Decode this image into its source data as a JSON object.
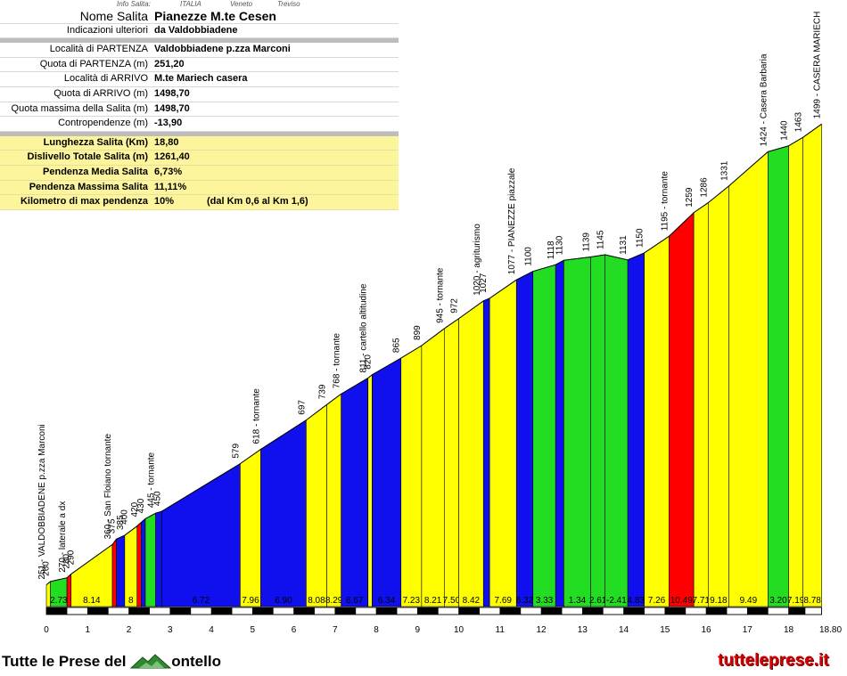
{
  "header": {
    "col1": "Info Salita:",
    "col2": "ITALIA",
    "col3": "Veneto",
    "col4": "Treviso"
  },
  "info": {
    "nome_label": "Nome Salita",
    "nome_value": "Pianezze M.te Cesen",
    "ind_label": "Indicazioni ulteriori",
    "ind_value": "da Valdobbiadene",
    "loc_p_label": "Località di PARTENZA",
    "loc_p_value": "Valdobbiadene p.zza Marconi",
    "quota_p_label": "Quota di PARTENZA (m)",
    "quota_p_value": "251,20",
    "loc_a_label": "Località di ARRIVO",
    "loc_a_value": "M.te Mariech casera",
    "quota_a_label": "Quota di ARRIVO (m)",
    "quota_a_value": "1498,70",
    "quota_max_label": "Quota massima della Salita (m)",
    "quota_max_value": "1498,70",
    "contro_label": "Contropendenze (m)",
    "contro_value": "-13,90",
    "lung_label": "Lunghezza Salita (Km)",
    "lung_value": "18,80",
    "disl_label": "Dislivello Totale Salita (m)",
    "disl_value": "1261,40",
    "pmed_label": "Pendenza Media Salita",
    "pmed_value": "6,73%",
    "pmax_label": "Pendenza Massima Salita",
    "pmax_value": "11,11%",
    "kmax_label": "Kilometro di max pendenza",
    "kmax_value": "10%",
    "kmax_extra": "(dal Km 0,6 al Km 1,6)"
  },
  "chart_data": {
    "type": "area",
    "xlabel": "",
    "ylabel": "",
    "xlim": [
      0,
      18.8
    ],
    "x_ticks": [
      "0",
      "1",
      "2",
      "3",
      "4",
      "5",
      "6",
      "7",
      "8",
      "9",
      "10",
      "11",
      "12",
      "13",
      "14",
      "15",
      "16",
      "17",
      "18",
      "18.80"
    ],
    "ylim": [
      200,
      1520
    ],
    "colors": {
      "yellow": "#ffff00",
      "green": "#22dd22",
      "blue": "#1010ee",
      "red": "#ff0000",
      "olive": "#cccc00"
    },
    "profile": [
      {
        "x": 0,
        "y": 251,
        "c": "yellow",
        "grade": ""
      },
      {
        "x": 0.1,
        "y": 260,
        "c": "green",
        "grade": "2.73"
      },
      {
        "x": 0.5,
        "y": 270,
        "c": "red",
        "grade": ""
      },
      {
        "x": 0.6,
        "y": 280,
        "c": "yellow",
        "grade": "8.14"
      },
      {
        "x": 1.6,
        "y": 360,
        "c": "red",
        "grade": ""
      },
      {
        "x": 1.7,
        "y": 375,
        "c": "blue",
        "grade": ""
      },
      {
        "x": 1.9,
        "y": 385,
        "c": "yellow",
        "grade": "8"
      },
      {
        "x": 2.2,
        "y": 410,
        "c": "red",
        "grade": ""
      },
      {
        "x": 2.3,
        "y": 420,
        "c": "blue",
        "grade": ""
      },
      {
        "x": 2.4,
        "y": 430,
        "c": "green",
        "grade": ""
      },
      {
        "x": 2.65,
        "y": 445,
        "c": "blue",
        "grade": ""
      },
      {
        "x": 2.8,
        "y": 450,
        "c": "blue",
        "grade": "6.72"
      },
      {
        "x": 4.7,
        "y": 579,
        "c": "yellow",
        "grade": "7.96"
      },
      {
        "x": 5.2,
        "y": 618,
        "c": "blue",
        "grade": "6.90"
      },
      {
        "x": 6.3,
        "y": 697,
        "c": "yellow",
        "grade": "8.08"
      },
      {
        "x": 6.8,
        "y": 739,
        "c": "yellow",
        "grade": "8.29"
      },
      {
        "x": 7.15,
        "y": 768,
        "c": "blue",
        "grade": "6.67"
      },
      {
        "x": 7.8,
        "y": 811,
        "c": "yellow",
        "grade": ""
      },
      {
        "x": 7.9,
        "y": 820,
        "c": "blue",
        "grade": "6.34"
      },
      {
        "x": 8.6,
        "y": 865,
        "c": "yellow",
        "grade": "7.23"
      },
      {
        "x": 9.1,
        "y": 899,
        "c": "yellow",
        "grade": "8.21"
      },
      {
        "x": 9.65,
        "y": 945,
        "c": "yellow",
        "grade": "7.50"
      },
      {
        "x": 10.0,
        "y": 972,
        "c": "yellow",
        "grade": "8.42"
      },
      {
        "x": 10.6,
        "y": 1020,
        "c": "blue",
        "grade": ""
      },
      {
        "x": 10.75,
        "y": 1027,
        "c": "yellow",
        "grade": "7.69"
      },
      {
        "x": 11.4,
        "y": 1077,
        "c": "blue",
        "grade": "6.32"
      },
      {
        "x": 11.8,
        "y": 1100,
        "c": "green",
        "grade": "3.33"
      },
      {
        "x": 12.35,
        "y": 1118,
        "c": "blue",
        "grade": ""
      },
      {
        "x": 12.55,
        "y": 1130,
        "c": "green",
        "grade": "1.34"
      },
      {
        "x": 13.2,
        "y": 1139,
        "c": "green",
        "grade": "2.61"
      },
      {
        "x": 13.55,
        "y": 1145,
        "c": "green",
        "grade": "-2.41"
      },
      {
        "x": 14.1,
        "y": 1131,
        "c": "blue",
        "grade": "4.83"
      },
      {
        "x": 14.5,
        "y": 1150,
        "c": "yellow",
        "grade": "7.26"
      },
      {
        "x": 15.1,
        "y": 1195,
        "c": "red",
        "grade": "10.49"
      },
      {
        "x": 15.7,
        "y": 1259,
        "c": "yellow",
        "grade": "7.71"
      },
      {
        "x": 16.05,
        "y": 1286,
        "c": "yellow",
        "grade": "9.18"
      },
      {
        "x": 16.55,
        "y": 1331,
        "c": "yellow",
        "grade": "9.49"
      },
      {
        "x": 17.5,
        "y": 1424,
        "c": "green",
        "grade": "3.20"
      },
      {
        "x": 18.0,
        "y": 1440,
        "c": "yellow",
        "grade": "7.19"
      },
      {
        "x": 18.35,
        "y": 1463,
        "c": "yellow",
        "grade": "8.78"
      },
      {
        "x": 18.8,
        "y": 1499,
        "c": "yellow",
        "grade": ""
      }
    ],
    "labels": [
      {
        "x": 0,
        "y": 251,
        "text": "251 - VALDOBBIADENE p.zza Marconi"
      },
      {
        "x": 0.1,
        "y": 260,
        "text": "260"
      },
      {
        "x": 0.5,
        "y": 270,
        "text": "270 - laterale a dx"
      },
      {
        "x": 0.6,
        "y": 280,
        "text": "280"
      },
      {
        "x": 0.7,
        "y": 290,
        "text": "290"
      },
      {
        "x": 1.6,
        "y": 360,
        "text": "360 - San Floiano tornante"
      },
      {
        "x": 1.7,
        "y": 375,
        "text": "375"
      },
      {
        "x": 1.9,
        "y": 385,
        "text": "385"
      },
      {
        "x": 2.0,
        "y": 400,
        "text": "400"
      },
      {
        "x": 2.25,
        "y": 420,
        "text": "420"
      },
      {
        "x": 2.4,
        "y": 430,
        "text": "430"
      },
      {
        "x": 2.65,
        "y": 445,
        "text": "445 - tornante"
      },
      {
        "x": 2.8,
        "y": 450,
        "text": "450"
      },
      {
        "x": 4.7,
        "y": 579,
        "text": "579"
      },
      {
        "x": 5.2,
        "y": 618,
        "text": "618 - tornante"
      },
      {
        "x": 6.3,
        "y": 697,
        "text": "697"
      },
      {
        "x": 6.8,
        "y": 739,
        "text": "739"
      },
      {
        "x": 7.15,
        "y": 768,
        "text": "768 - tornante"
      },
      {
        "x": 7.8,
        "y": 811,
        "text": "811 - cartello altitudine"
      },
      {
        "x": 7.9,
        "y": 820,
        "text": "820"
      },
      {
        "x": 8.6,
        "y": 865,
        "text": "865"
      },
      {
        "x": 9.1,
        "y": 899,
        "text": "899"
      },
      {
        "x": 9.65,
        "y": 945,
        "text": "945 - tornante"
      },
      {
        "x": 10.0,
        "y": 972,
        "text": "972"
      },
      {
        "x": 10.55,
        "y": 1020,
        "text": "1020 - agriturismo"
      },
      {
        "x": 10.7,
        "y": 1027,
        "text": "1027"
      },
      {
        "x": 11.4,
        "y": 1077,
        "text": "1077 - PIANEZZE piazzale"
      },
      {
        "x": 11.8,
        "y": 1100,
        "text": "1100"
      },
      {
        "x": 12.35,
        "y": 1118,
        "text": "1118"
      },
      {
        "x": 12.55,
        "y": 1130,
        "text": "1130"
      },
      {
        "x": 13.2,
        "y": 1139,
        "text": "1139"
      },
      {
        "x": 13.55,
        "y": 1145,
        "text": "1145"
      },
      {
        "x": 14.1,
        "y": 1131,
        "text": "1131"
      },
      {
        "x": 14.5,
        "y": 1150,
        "text": "1150"
      },
      {
        "x": 15.1,
        "y": 1195,
        "text": "1195 - tornante"
      },
      {
        "x": 15.7,
        "y": 1259,
        "text": "1259"
      },
      {
        "x": 16.05,
        "y": 1286,
        "text": "1286"
      },
      {
        "x": 16.55,
        "y": 1331,
        "text": "1331"
      },
      {
        "x": 17.5,
        "y": 1424,
        "text": "1424 - Casera Barbaria"
      },
      {
        "x": 18.0,
        "y": 1440,
        "text": "1440"
      },
      {
        "x": 18.35,
        "y": 1463,
        "text": "1463"
      },
      {
        "x": 18.8,
        "y": 1499,
        "text": "1499 - CASERA MARIECH"
      }
    ]
  },
  "footer": {
    "logo_text_pre": "Tutte le Prese del",
    "logo_text_post": "ontello",
    "site": "tutteleprese.it"
  }
}
